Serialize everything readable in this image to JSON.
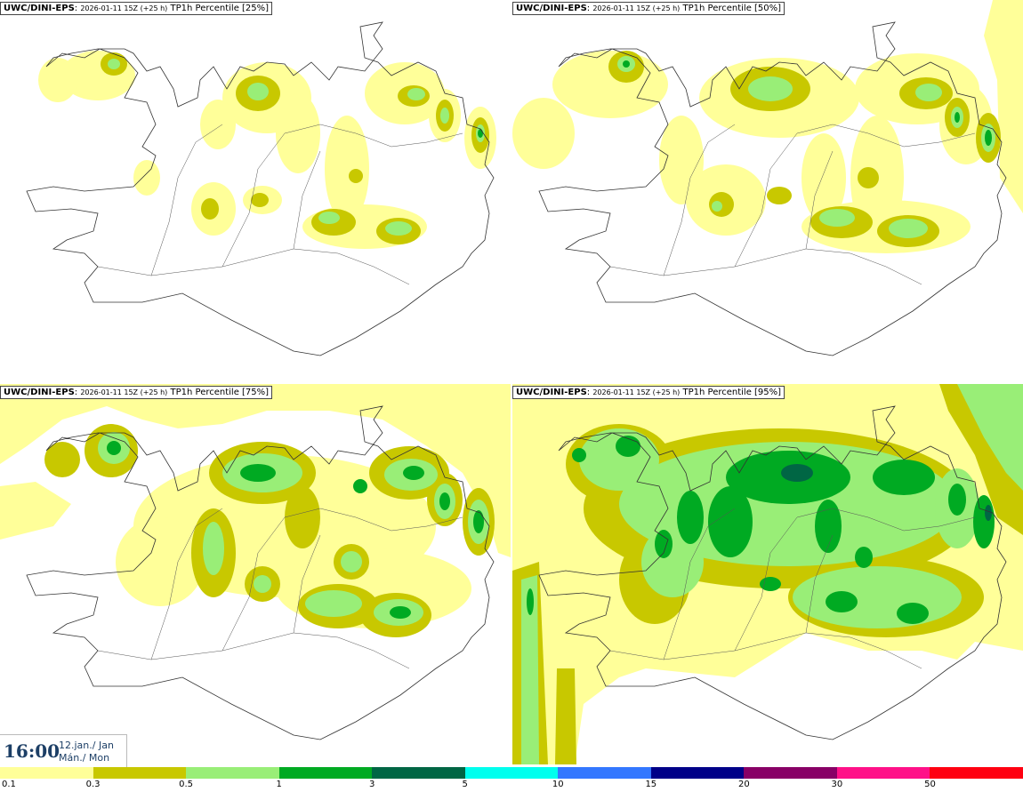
{
  "panels": [
    {
      "source": "UWC/DINI-EPS",
      "run": "2026-01-11 15Z (+25 h)",
      "field": "TP1h Percentile [25%]"
    },
    {
      "source": "UWC/DINI-EPS",
      "run": "2026-01-11 15Z (+25 h)",
      "field": "TP1h Percentile [50%]"
    },
    {
      "source": "UWC/DINI-EPS",
      "run": "2026-01-11 15Z (+25 h)",
      "field": "TP1h Percentile [75%]"
    },
    {
      "source": "UWC/DINI-EPS",
      "run": "2026-01-11 15Z (+25 h)",
      "field": "TP1h Percentile [95%]"
    }
  ],
  "valid_time": {
    "time": "16:00",
    "date_line1": "12.jan./ Jan",
    "date_line2": "Mán./ Mon"
  },
  "legend": {
    "colors": [
      "#ffff99",
      "#c8c800",
      "#99ee77",
      "#00aa22",
      "#006644",
      "#00ffee",
      "#3377ff",
      "#000088",
      "#880066",
      "#ff1188",
      "#ff0011"
    ],
    "ticks": [
      "0.1",
      "0.3",
      "0.5",
      "1",
      "3",
      "5",
      "10",
      "15",
      "20",
      "30",
      "50"
    ]
  },
  "map_colors": {
    "coast": "#333333",
    "roads": "#555555",
    "level1": "#ffff99",
    "level2": "#c8c800",
    "level3": "#99ee77",
    "level4": "#00aa22",
    "level5": "#006644"
  }
}
